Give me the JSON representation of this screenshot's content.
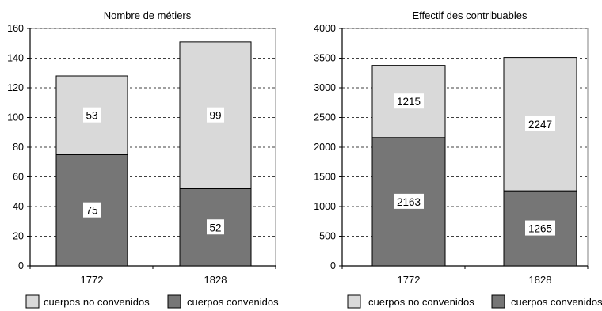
{
  "chart_data": [
    {
      "type": "bar",
      "stacked": true,
      "title": "Nombre de métiers",
      "categories": [
        "1772",
        "1828"
      ],
      "series": [
        {
          "name": "cuerpos convenidos",
          "values": [
            75,
            52
          ]
        },
        {
          "name": "cuerpos no convenidos",
          "values": [
            53,
            99
          ]
        }
      ],
      "ylim": [
        0,
        160
      ],
      "yticks": [
        0,
        20,
        40,
        60,
        80,
        100,
        120,
        140,
        160
      ],
      "grid": true,
      "legend": "bottom"
    },
    {
      "type": "bar",
      "stacked": true,
      "title": "Effectif des contribuables",
      "categories": [
        "1772",
        "1828"
      ],
      "series": [
        {
          "name": "cuerpos convenidos",
          "values": [
            2163,
            1265
          ]
        },
        {
          "name": "cuerpos no convenidos",
          "values": [
            1215,
            2247
          ]
        }
      ],
      "ylim": [
        0,
        4000
      ],
      "yticks": [
        0,
        500,
        1000,
        1500,
        2000,
        2500,
        3000,
        3500,
        4000
      ],
      "grid": true,
      "legend": "bottom"
    }
  ],
  "colors": {
    "cuerpos_convenidos": "#767676",
    "cuerpos_no_convenidos": "#d9d9d9",
    "grid": "#000000",
    "frame": "#808080"
  }
}
